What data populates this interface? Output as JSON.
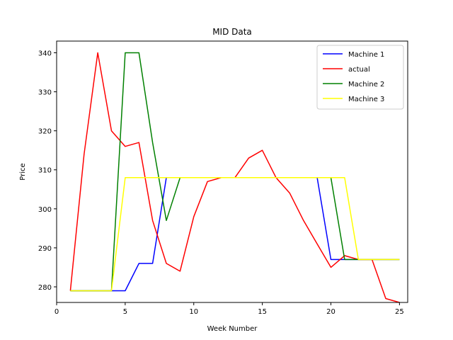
{
  "chart_data": {
    "type": "line",
    "title": "MID Data",
    "xlabel": "Week Number",
    "ylabel": "Price",
    "xlim": [
      0,
      25.6
    ],
    "ylim": [
      276,
      343
    ],
    "xticks": [
      0,
      5,
      10,
      15,
      20,
      25
    ],
    "yticks": [
      280,
      290,
      300,
      310,
      320,
      330,
      340
    ],
    "legend_position": "top-right",
    "x": [
      1,
      2,
      3,
      4,
      5,
      6,
      7,
      8,
      9,
      10,
      11,
      12,
      13,
      14,
      15,
      16,
      17,
      18,
      19,
      20,
      21,
      22,
      23,
      24,
      25
    ],
    "series": [
      {
        "name": "Machine 1",
        "color": "#0000ff",
        "values": [
          279,
          279,
          279,
          279,
          279,
          286,
          286,
          308,
          308,
          308,
          308,
          308,
          308,
          308,
          308,
          308,
          308,
          308,
          308,
          287,
          287,
          287,
          287,
          287,
          287
        ]
      },
      {
        "name": "actual",
        "color": "#ff0000",
        "values": [
          279,
          314,
          340,
          320,
          316,
          317,
          297,
          286,
          284,
          298,
          307,
          308,
          308,
          313,
          315,
          308,
          304,
          297,
          291,
          285,
          288,
          287,
          287,
          277,
          276
        ]
      },
      {
        "name": "Machine 2",
        "color": "#008000",
        "values": [
          279,
          279,
          279,
          279,
          340,
          340,
          317,
          297,
          308,
          308,
          308,
          308,
          308,
          308,
          308,
          308,
          308,
          308,
          308,
          308,
          287,
          287,
          287,
          287,
          287
        ]
      },
      {
        "name": "Machine 3",
        "color": "#ffff00",
        "values": [
          279,
          279,
          279,
          279,
          308,
          308,
          308,
          308,
          308,
          308,
          308,
          308,
          308,
          308,
          308,
          308,
          308,
          308,
          308,
          308,
          308,
          287,
          287,
          287,
          287
        ]
      }
    ]
  }
}
